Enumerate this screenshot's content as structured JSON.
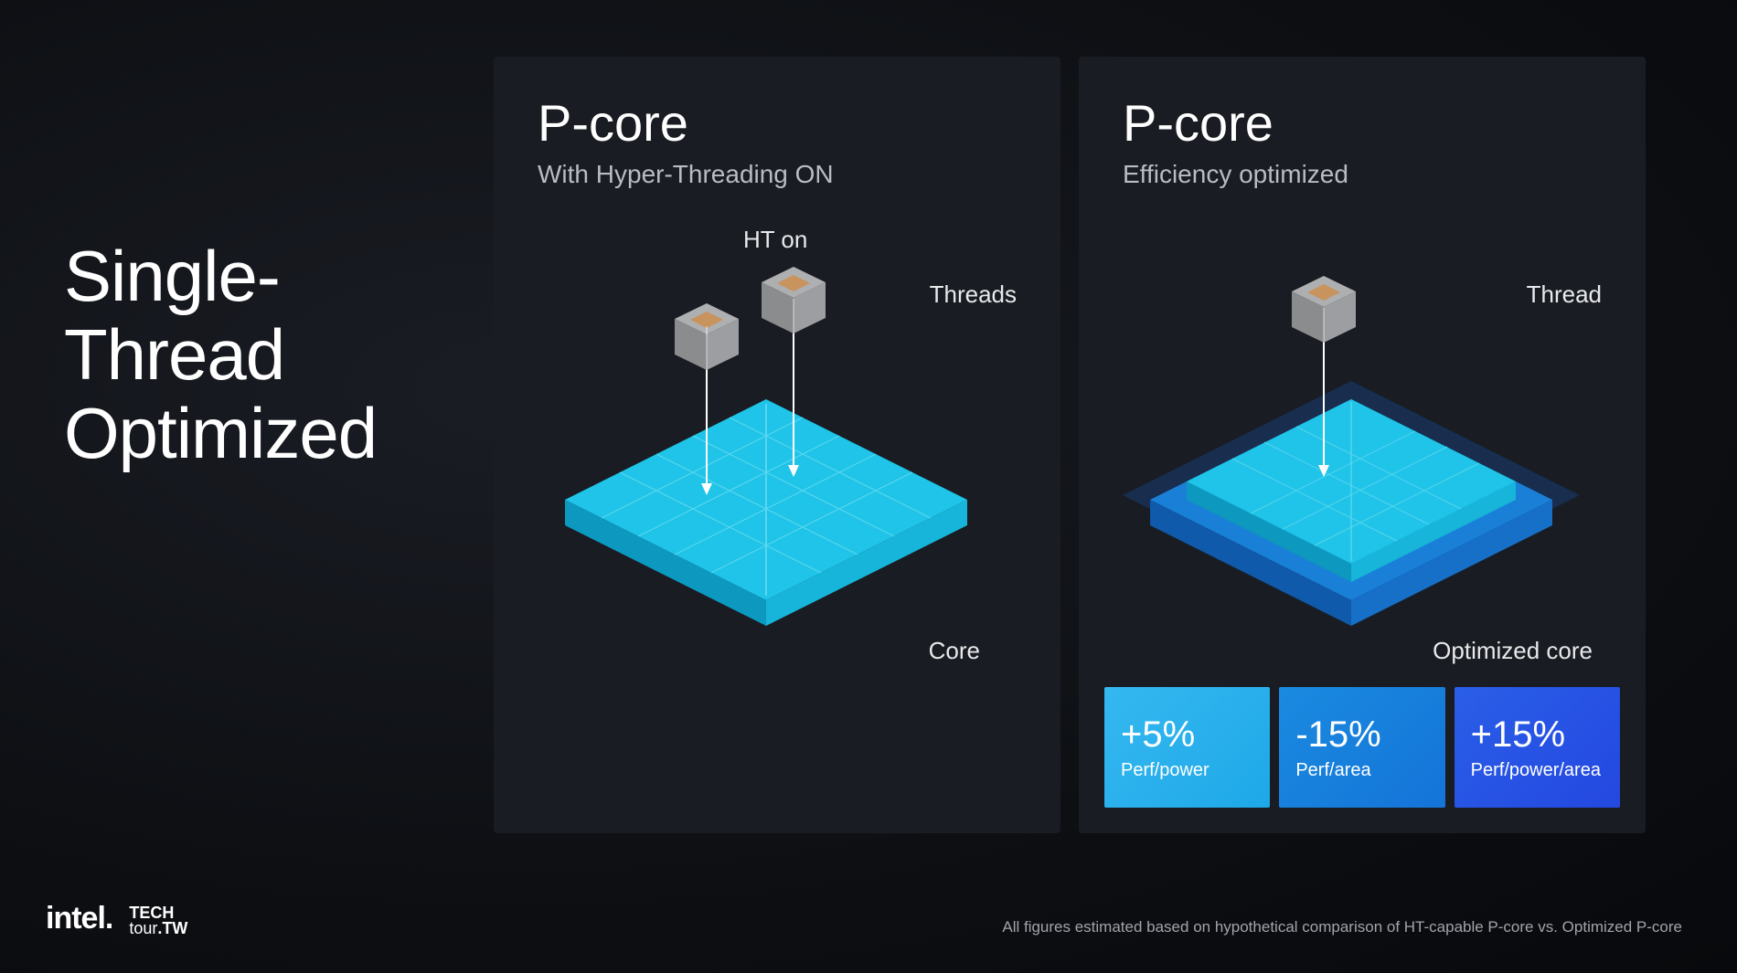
{
  "main_title": "Single-\nThread\nOptimized",
  "panels": {
    "left": {
      "title": "P-core",
      "subtitle": "With Hyper-Threading ON",
      "ht_label": "HT on",
      "threads_label": "Threads",
      "core_label": "Core",
      "chip_color_top": "#1fc4e8",
      "chip_color_side": "#0d98c0",
      "chip_color_front": "#17b5d9",
      "chip_line_color": "#5fd9f0"
    },
    "right": {
      "title": "P-core",
      "subtitle": "Efficiency optimized",
      "thread_label": "Thread",
      "core_label": "Optimized core",
      "chip_color_top": "#1a7fd6",
      "chip_color_side": "#0f5aaa",
      "chip_color_front": "#1670c8",
      "chip_line_color": "#4fa8e8",
      "chip_inner_top": "#1fc4e8",
      "chip_inner_side": "#0d98c0",
      "glow_color": "#1a3d7a",
      "metrics": [
        {
          "value": "+5%",
          "label": "Perf/power",
          "bg": "linear-gradient(135deg, #35b8f0 0%, #1ea8e8 100%)"
        },
        {
          "value": "-15%",
          "label": "Perf/area",
          "bg": "linear-gradient(135deg, #1a8ae0 0%, #1474d8 100%)"
        },
        {
          "value": "+15%",
          "label": "Perf/power/area",
          "bg": "linear-gradient(135deg, #2a5ee8 0%, #2448e0 100%)"
        }
      ]
    }
  },
  "cube": {
    "top_color": "#c8c9cb",
    "left_color": "#9fa0a2",
    "right_color": "#b5b6b8",
    "inner_color": "#e8a968",
    "opacity": 0.85
  },
  "footer": {
    "intel": "intel.",
    "techtour_top": "TECH",
    "techtour_bot": "tour",
    "techtour_tw": ".TW",
    "footnote": "All figures estimated based on hypothetical comparison of HT-capable P-core vs. Optimized P-core"
  },
  "colors": {
    "bg": "#0d0f13",
    "panel_bg": "#191c22",
    "text": "#ffffff",
    "text_muted": "#b8bcc4"
  }
}
